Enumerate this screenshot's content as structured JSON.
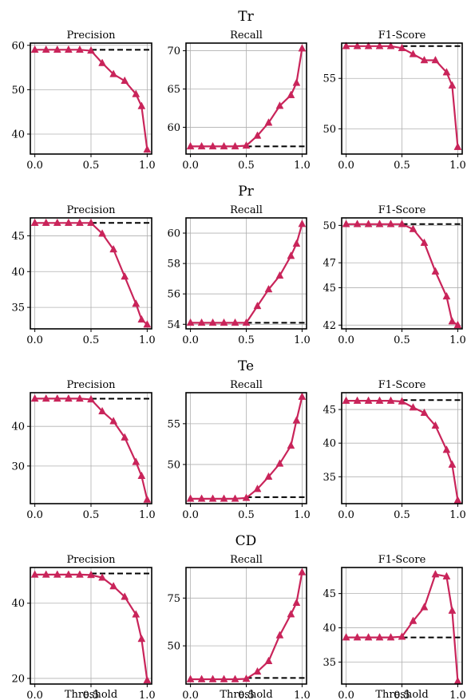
{
  "figure": {
    "xlabel": "Threshold"
  },
  "style": {
    "line_color": "#c9245a",
    "baseline_color": "#000000",
    "grid_color": "#b0b0b0"
  },
  "chart_data": [
    {
      "group": "Tr",
      "charts": [
        {
          "type": "line",
          "title": "Precision",
          "xlabel": "",
          "ylim": [
            35.5,
            60.5
          ],
          "yticks": [
            40,
            50,
            60
          ],
          "xticks": [
            0.0,
            0.5,
            1.0
          ],
          "grid": true,
          "x": [
            0.0,
            0.1,
            0.2,
            0.3,
            0.4,
            0.5,
            0.6,
            0.7,
            0.8,
            0.9,
            0.95,
            1.0
          ],
          "values": [
            59.0,
            59.0,
            59.0,
            59.0,
            59.0,
            58.8,
            56.0,
            53.5,
            52.0,
            49.0,
            46.3,
            36.5
          ],
          "baseline": 59.0
        },
        {
          "type": "line",
          "title": "Recall",
          "xlabel": "",
          "ylim": [
            56.5,
            71.0
          ],
          "yticks": [
            60,
            65,
            70
          ],
          "xticks": [
            0.0,
            0.5,
            1.0
          ],
          "grid": true,
          "x": [
            0.0,
            0.1,
            0.2,
            0.3,
            0.4,
            0.5,
            0.6,
            0.7,
            0.8,
            0.9,
            0.95,
            1.0
          ],
          "values": [
            57.5,
            57.5,
            57.5,
            57.5,
            57.5,
            57.6,
            58.9,
            60.6,
            62.8,
            64.2,
            65.8,
            70.3
          ],
          "baseline": 57.5
        },
        {
          "type": "line",
          "title": "F1-Score",
          "xlabel": "",
          "ylim": [
            47.5,
            58.5
          ],
          "yticks": [
            50,
            55
          ],
          "xticks": [
            0.0,
            0.5,
            1.0
          ],
          "grid": true,
          "x": [
            0.0,
            0.1,
            0.2,
            0.3,
            0.4,
            0.5,
            0.6,
            0.7,
            0.8,
            0.9,
            0.95,
            1.0
          ],
          "values": [
            58.2,
            58.2,
            58.2,
            58.2,
            58.2,
            58.0,
            57.4,
            56.8,
            56.8,
            55.6,
            54.3,
            48.2
          ],
          "baseline": 58.2
        }
      ]
    },
    {
      "group": "Pr",
      "charts": [
        {
          "type": "line",
          "title": "Precision",
          "xlabel": "",
          "ylim": [
            32.0,
            47.5
          ],
          "yticks": [
            35,
            40,
            45
          ],
          "xticks": [
            0.0,
            0.5,
            1.0
          ],
          "grid": true,
          "x": [
            0.0,
            0.1,
            0.2,
            0.3,
            0.4,
            0.5,
            0.6,
            0.7,
            0.8,
            0.9,
            0.95,
            1.0
          ],
          "values": [
            46.8,
            46.8,
            46.8,
            46.8,
            46.8,
            46.8,
            45.3,
            43.1,
            39.3,
            35.5,
            33.3,
            32.6
          ],
          "baseline": 46.8
        },
        {
          "type": "line",
          "title": "Recall",
          "xlabel": "",
          "ylim": [
            53.7,
            61.0
          ],
          "yticks": [
            54,
            56,
            58,
            60
          ],
          "xticks": [
            0.0,
            0.5,
            1.0
          ],
          "grid": true,
          "x": [
            0.0,
            0.1,
            0.2,
            0.3,
            0.4,
            0.5,
            0.6,
            0.7,
            0.8,
            0.9,
            0.95,
            1.0
          ],
          "values": [
            54.1,
            54.1,
            54.1,
            54.1,
            54.1,
            54.1,
            55.2,
            56.3,
            57.2,
            58.5,
            59.3,
            60.6
          ],
          "baseline": 54.1
        },
        {
          "type": "line",
          "title": "F1-Score",
          "xlabel": "",
          "ylim": [
            41.7,
            50.6
          ],
          "yticks": [
            42,
            45,
            47,
            50
          ],
          "xticks": [
            0.0,
            0.5,
            1.0
          ],
          "grid": true,
          "x": [
            0.0,
            0.1,
            0.2,
            0.3,
            0.4,
            0.5,
            0.6,
            0.7,
            0.8,
            0.9,
            0.95,
            1.0
          ],
          "values": [
            50.1,
            50.1,
            50.1,
            50.1,
            50.1,
            50.1,
            49.7,
            48.6,
            46.3,
            44.3,
            42.3,
            42.0
          ],
          "baseline": 50.1
        }
      ]
    },
    {
      "group": "Te",
      "charts": [
        {
          "type": "line",
          "title": "Precision",
          "xlabel": "",
          "ylim": [
            20.5,
            48.5
          ],
          "yticks": [
            30,
            40
          ],
          "xticks": [
            0.0,
            0.5,
            1.0
          ],
          "grid": true,
          "x": [
            0.0,
            0.1,
            0.2,
            0.3,
            0.4,
            0.5,
            0.6,
            0.7,
            0.8,
            0.9,
            0.95,
            1.0
          ],
          "values": [
            47.0,
            47.0,
            47.0,
            47.0,
            47.0,
            46.8,
            43.8,
            41.3,
            37.2,
            31.0,
            27.5,
            21.5
          ],
          "baseline": 47.0
        },
        {
          "type": "line",
          "title": "Recall",
          "xlabel": "",
          "ylim": [
            45.2,
            58.8
          ],
          "yticks": [
            50,
            55
          ],
          "xticks": [
            0.0,
            0.5,
            1.0
          ],
          "grid": true,
          "x": [
            0.0,
            0.1,
            0.2,
            0.3,
            0.4,
            0.5,
            0.6,
            0.7,
            0.8,
            0.9,
            0.95,
            1.0
          ],
          "values": [
            45.8,
            45.8,
            45.8,
            45.8,
            45.8,
            45.9,
            47.0,
            48.5,
            50.1,
            52.3,
            55.4,
            58.3
          ],
          "baseline": 46.0
        },
        {
          "type": "line",
          "title": "F1-Score",
          "xlabel": "",
          "ylim": [
            31.0,
            47.5
          ],
          "yticks": [
            35,
            40,
            45
          ],
          "xticks": [
            0.0,
            0.5,
            1.0
          ],
          "grid": true,
          "x": [
            0.0,
            0.1,
            0.2,
            0.3,
            0.4,
            0.5,
            0.6,
            0.7,
            0.8,
            0.9,
            0.95,
            1.0
          ],
          "values": [
            46.3,
            46.3,
            46.3,
            46.3,
            46.3,
            46.2,
            45.3,
            44.5,
            42.6,
            39.0,
            36.8,
            31.5
          ],
          "baseline": 46.4
        }
      ]
    },
    {
      "group": "CD",
      "charts": [
        {
          "type": "line",
          "title": "Precision",
          "xlabel": "Threshold",
          "ylim": [
            18.5,
            49.5
          ],
          "yticks": [
            20,
            40
          ],
          "xticks": [
            0.0,
            0.5,
            1.0
          ],
          "grid": true,
          "x": [
            0.0,
            0.1,
            0.2,
            0.3,
            0.4,
            0.5,
            0.6,
            0.7,
            0.8,
            0.9,
            0.95,
            1.0
          ],
          "values": [
            47.6,
            47.6,
            47.6,
            47.6,
            47.6,
            47.5,
            46.8,
            44.5,
            41.7,
            37.0,
            30.5,
            19.5
          ],
          "baseline": 47.9
        },
        {
          "type": "line",
          "title": "Recall",
          "xlabel": "Threshold",
          "ylim": [
            30.0,
            91.0
          ],
          "yticks": [
            50,
            75
          ],
          "xticks": [
            0.0,
            0.5,
            1.0
          ],
          "grid": true,
          "x": [
            0.0,
            0.1,
            0.2,
            0.3,
            0.4,
            0.5,
            0.6,
            0.7,
            0.8,
            0.9,
            0.95,
            1.0
          ],
          "values": [
            32.5,
            32.5,
            32.5,
            32.5,
            32.5,
            32.7,
            36.5,
            42.0,
            55.5,
            66.5,
            72.5,
            88.5
          ],
          "baseline": 33.2
        },
        {
          "type": "line",
          "title": "F1-Score",
          "xlabel": "Threshold",
          "ylim": [
            31.8,
            48.8
          ],
          "yticks": [
            35,
            40,
            45
          ],
          "xticks": [
            0.0,
            0.5,
            1.0
          ],
          "grid": true,
          "x": [
            0.0,
            0.1,
            0.2,
            0.3,
            0.4,
            0.5,
            0.6,
            0.7,
            0.8,
            0.9,
            0.95,
            1.0
          ],
          "values": [
            38.6,
            38.6,
            38.6,
            38.6,
            38.6,
            38.7,
            41.0,
            43.0,
            47.8,
            47.5,
            42.5,
            32.2
          ],
          "baseline": 38.6
        }
      ]
    }
  ]
}
